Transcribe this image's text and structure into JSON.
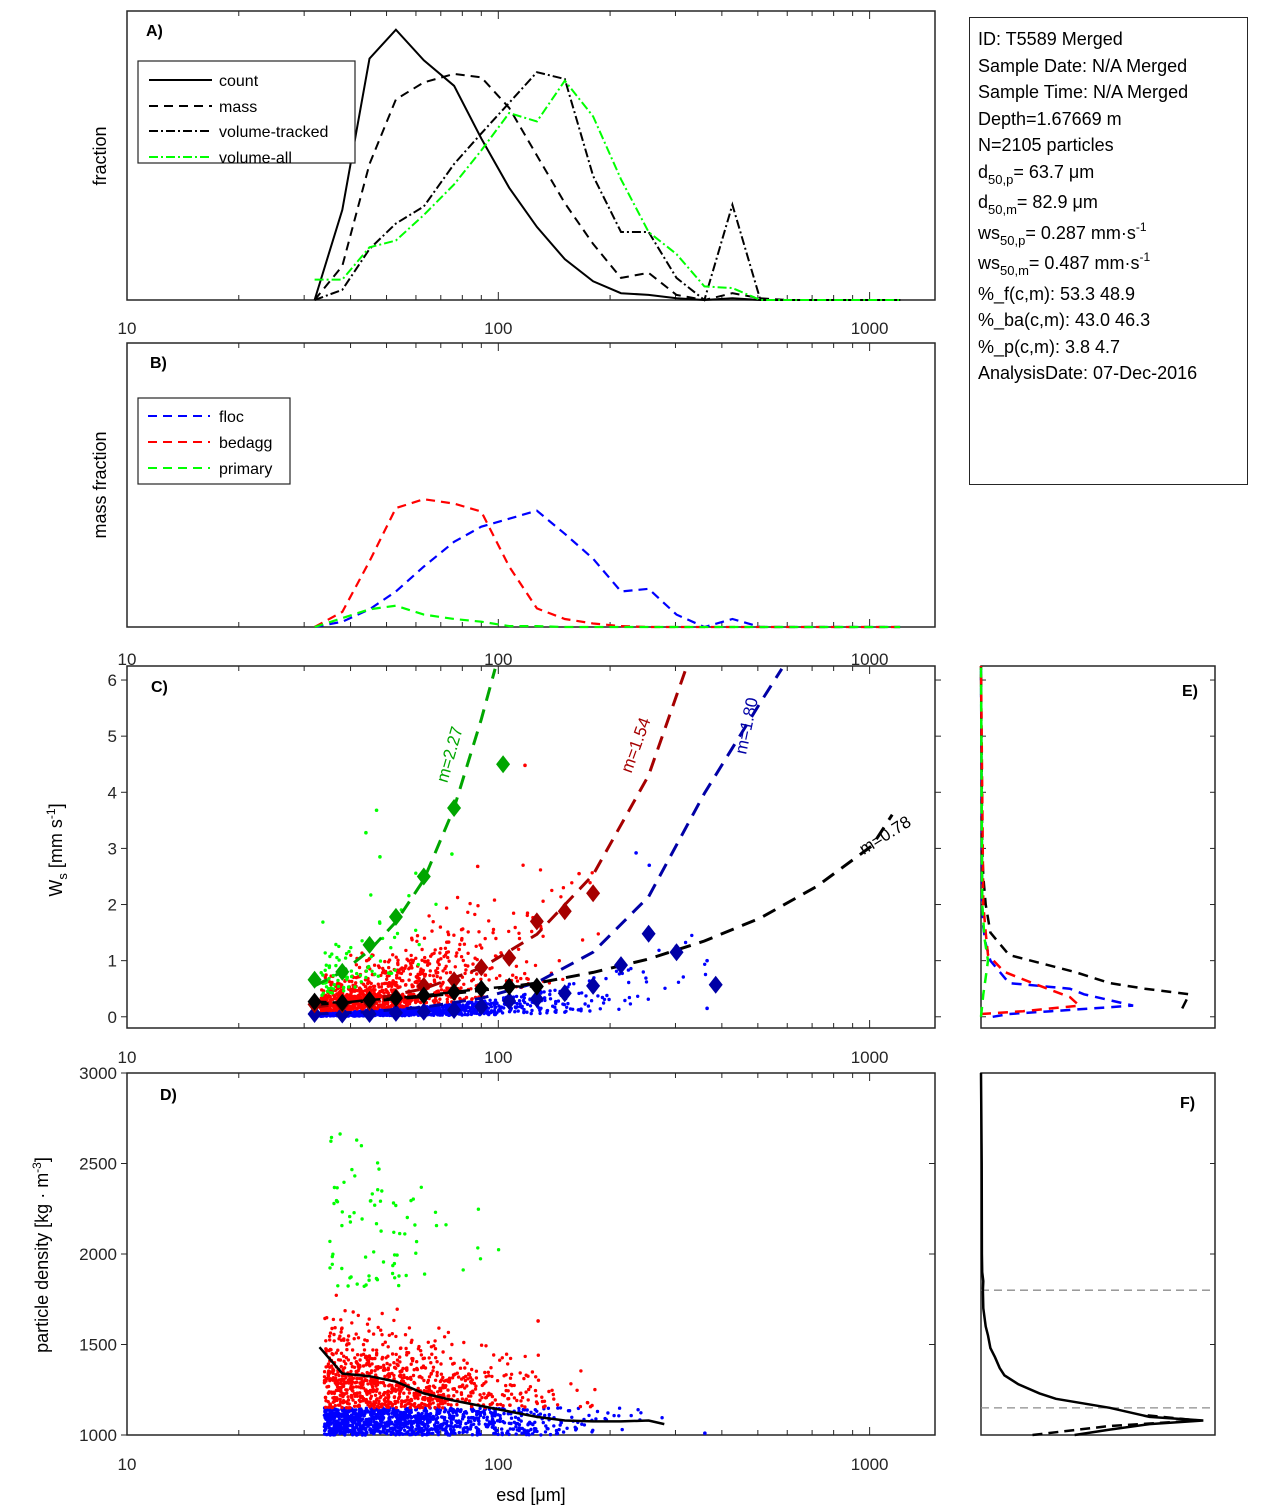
{
  "info_box": {
    "id": "ID: T5589 Merged",
    "sample_date": "Sample Date: N/A Merged",
    "sample_time": "Sample Time: N/A Merged",
    "depth": "Depth=1.67669 m",
    "n": "N=2105 particles",
    "d50p_base": "d",
    "d50p_sub": "50,p",
    "d50p_val": "=  63.7 μm",
    "d50m_base": "d",
    "d50m_sub": "50,m",
    "d50m_val": "=  82.9 μm",
    "ws50p_base": "ws",
    "ws50p_sub": "50,p",
    "ws50p_val": "= 0.287 mm·s",
    "ws50p_sup": "-1",
    "ws50m_base": "ws",
    "ws50m_sub": "50,m",
    "ws50m_val": "= 0.487 mm·s",
    "ws50m_sup": "-1",
    "pf": "%_f(c,m): 53.3 48.9",
    "pba": "%_ba(c,m): 43.0 46.3",
    "pp": "%_p(c,m): 3.8 4.7",
    "analysis_date": "AnalysisDate: 07-Dec-2016"
  },
  "colors": {
    "black": "#000000",
    "green": "#00ff00",
    "blue": "#0000ff",
    "red": "#ff0000",
    "dark_green": "#00a600",
    "dark_red": "#a60000",
    "dark_blue": "#0000a6",
    "gray": "#8c8c8c",
    "axis": "#262626"
  },
  "chart_data": [
    {
      "panel": "A",
      "type": "line",
      "label": "A)",
      "xscale": "log",
      "xlim": [
        10,
        1500
      ],
      "xticks": [
        10,
        100,
        1000
      ],
      "xtick_labels": [
        "10",
        "100",
        "1000"
      ],
      "ylabel": "fraction",
      "ylim": [
        0,
        0.17
      ],
      "yticks_shown": false,
      "legend_position": "top-left",
      "x": [
        32,
        38,
        45,
        53,
        63,
        76,
        90,
        107,
        127,
        151,
        180,
        214,
        254,
        302,
        359,
        427,
        508,
        604,
        719,
        855,
        1016,
        1209
      ],
      "series": [
        {
          "name": "count",
          "style": "solid",
          "color": "#000000",
          "values": [
            0.0,
            0.053,
            0.142,
            0.159,
            0.141,
            0.126,
            0.095,
            0.066,
            0.043,
            0.024,
            0.011,
            0.004,
            0.003,
            0.001,
            0.0,
            0.001,
            0.0,
            0.0,
            0.0,
            0.0,
            0.0,
            0.0
          ]
        },
        {
          "name": "mass",
          "style": "dashed",
          "color": "#000000",
          "values": [
            0.0,
            0.02,
            0.08,
            0.118,
            0.128,
            0.133,
            0.131,
            0.113,
            0.085,
            0.057,
            0.033,
            0.013,
            0.016,
            0.003,
            0.0,
            0.004,
            0.001,
            0.0,
            0.0,
            0.0,
            0.0,
            0.0
          ]
        },
        {
          "name": "volume-tracked",
          "style": "dashdot",
          "color": "#000000",
          "values": [
            0.0,
            0.006,
            0.03,
            0.045,
            0.055,
            0.08,
            0.098,
            0.116,
            0.134,
            0.13,
            0.073,
            0.04,
            0.04,
            0.013,
            0.0,
            0.056,
            0.0,
            0.0,
            0.0,
            0.0,
            0.0,
            0.0
          ]
        },
        {
          "name": "volume-all",
          "style": "dashdot",
          "color": "#00ff00",
          "values": [
            0.012,
            0.012,
            0.031,
            0.035,
            0.05,
            0.068,
            0.088,
            0.11,
            0.105,
            0.129,
            0.108,
            0.071,
            0.04,
            0.027,
            0.008,
            0.007,
            0.0,
            0.0,
            0.0,
            0.0,
            0.0,
            0.0
          ]
        }
      ]
    },
    {
      "panel": "B",
      "type": "line",
      "label": "B)",
      "xscale": "log",
      "xlim": [
        10,
        1500
      ],
      "xticks": [
        10,
        100,
        1000
      ],
      "xtick_labels": [
        "10",
        "100",
        "1000"
      ],
      "ylabel": "mass fraction",
      "ylim": [
        0,
        0.32
      ],
      "yticks_shown": false,
      "legend_position": "top-left",
      "x": [
        32,
        38,
        45,
        53,
        63,
        76,
        90,
        107,
        127,
        151,
        180,
        214,
        254,
        302,
        359,
        427,
        508,
        604,
        719,
        855,
        1016,
        1209
      ],
      "series": [
        {
          "name": "floc",
          "style": "dashed",
          "color": "#0000ff",
          "values": [
            0.0,
            0.006,
            0.02,
            0.04,
            0.068,
            0.096,
            0.113,
            0.122,
            0.131,
            0.105,
            0.077,
            0.04,
            0.043,
            0.014,
            0.0,
            0.009,
            0.0,
            0.0,
            0.0,
            0.0,
            0.0,
            0.0
          ]
        },
        {
          "name": "bedagg",
          "style": "dashed",
          "color": "#ff0000",
          "values": [
            0.0,
            0.017,
            0.074,
            0.134,
            0.144,
            0.139,
            0.13,
            0.068,
            0.021,
            0.009,
            0.004,
            0.001,
            0.0,
            0.0,
            0.0,
            0.0,
            0.0,
            0.0,
            0.0,
            0.0,
            0.0,
            0.0
          ]
        },
        {
          "name": "primary",
          "style": "dashed",
          "color": "#00ff00",
          "values": [
            0.0,
            0.01,
            0.02,
            0.024,
            0.014,
            0.009,
            0.006,
            0.001,
            0.001,
            0.0,
            0.0,
            0.0,
            0.0,
            0.0,
            0.0,
            0.0,
            0.0,
            0.0,
            0.0,
            0.0,
            0.0,
            0.0
          ]
        }
      ]
    },
    {
      "panel": "C",
      "type": "scatter",
      "label": "C)",
      "xscale": "log",
      "xlim": [
        10,
        1500
      ],
      "xticks": [
        10,
        100,
        1000
      ],
      "xtick_labels": [
        "10",
        "100",
        "1000"
      ],
      "ylabel": "W_s [mm s^-1]",
      "ylim": [
        -0.2,
        6.25
      ],
      "yticks": [
        0,
        1,
        2,
        3,
        4,
        5,
        6
      ],
      "ytick_labels": [
        "0",
        "1",
        "2",
        "3",
        "4",
        "5",
        "6"
      ],
      "scatter_groups": [
        {
          "name": "floc",
          "color": "#0000ff",
          "count": 1120,
          "x_range": [
            32,
            400
          ],
          "y_range": [
            0,
            1.0
          ]
        },
        {
          "name": "bedagg",
          "color": "#ff0000",
          "count": 905,
          "x_range": [
            33,
            200
          ],
          "y_range": [
            0.1,
            2.7
          ]
        },
        {
          "name": "primary",
          "color": "#00ff00",
          "count": 80,
          "x_range": [
            33,
            80
          ],
          "y_range": [
            0.4,
            3.7
          ]
        }
      ],
      "outliers": [
        {
          "group": "primary",
          "x": 47,
          "y": 3.68
        },
        {
          "group": "primary",
          "x": 44,
          "y": 3.28
        },
        {
          "group": "primary",
          "x": 48,
          "y": 2.85
        },
        {
          "group": "primary",
          "x": 75,
          "y": 2.9
        },
        {
          "group": "bedagg",
          "x": 118,
          "y": 4.48
        },
        {
          "group": "bedagg",
          "x": 88,
          "y": 2.68
        },
        {
          "group": "bedagg",
          "x": 165,
          "y": 2.55
        },
        {
          "group": "floc",
          "x": 235,
          "y": 2.92
        },
        {
          "group": "floc",
          "x": 255,
          "y": 2.7
        },
        {
          "group": "floc",
          "x": 365,
          "y": 1.0
        },
        {
          "group": "floc",
          "x": 365,
          "y": 0.15
        }
      ],
      "bin_medians": [
        {
          "name": "floc",
          "color": "#0000a6",
          "x": [
            32,
            38,
            45,
            53,
            63,
            76,
            90,
            107,
            127,
            151,
            180,
            214,
            254,
            302,
            385
          ],
          "y": [
            0.05,
            0.04,
            0.05,
            0.07,
            0.09,
            0.12,
            0.18,
            0.28,
            0.32,
            0.42,
            0.55,
            0.92,
            1.48,
            1.15,
            0.57
          ]
        },
        {
          "name": "bedagg",
          "color": "#a60000",
          "x": [
            32,
            38,
            45,
            53,
            63,
            76,
            90,
            107,
            127,
            151,
            180
          ],
          "y": [
            0.22,
            0.22,
            0.26,
            0.35,
            0.55,
            0.65,
            0.88,
            1.05,
            1.7,
            1.88,
            2.2
          ]
        },
        {
          "name": "primary",
          "color": "#00a600",
          "x": [
            32,
            38,
            45,
            53,
            63,
            76,
            103
          ],
          "y": [
            0.66,
            0.8,
            1.28,
            1.78,
            2.5,
            3.72,
            4.5
          ]
        },
        {
          "name": "all",
          "color": "#000000",
          "x": [
            32,
            38,
            45,
            53,
            63,
            76,
            90,
            107,
            127
          ],
          "y": [
            0.27,
            0.25,
            0.3,
            0.33,
            0.38,
            0.44,
            0.5,
            0.54,
            0.54
          ]
        }
      ],
      "fit_curves": [
        {
          "name": "primary-fit",
          "label": "m=2.27",
          "m": 2.27,
          "color": "#00a600",
          "x": [
            32,
            38,
            45,
            53,
            63,
            76,
            90,
            98
          ],
          "y": [
            0.55,
            0.8,
            1.18,
            1.69,
            2.44,
            3.72,
            5.3,
            6.2
          ]
        },
        {
          "name": "bedagg-fit",
          "label": "m=1.54",
          "m": 1.54,
          "color": "#a60000",
          "x": [
            32,
            45,
            63,
            90,
            127,
            180,
            254,
            320
          ],
          "y": [
            0.17,
            0.3,
            0.5,
            0.87,
            1.47,
            2.53,
            4.3,
            6.2
          ]
        },
        {
          "name": "floc-fit",
          "label": "m=1.80",
          "m": 1.8,
          "color": "#0000a6",
          "x": [
            32,
            45,
            63,
            90,
            127,
            180,
            254,
            359,
            508,
            580
          ],
          "y": [
            0.05,
            0.09,
            0.17,
            0.33,
            0.61,
            1.15,
            2.14,
            3.98,
            5.6,
            6.2
          ]
        },
        {
          "name": "all-fit",
          "label": "m=0.78",
          "m": 0.78,
          "color": "#000000",
          "x": [
            32,
            45,
            63,
            90,
            127,
            180,
            254,
            359,
            508,
            719,
            1016,
            1150
          ],
          "y": [
            0.22,
            0.28,
            0.36,
            0.47,
            0.6,
            0.79,
            1.03,
            1.35,
            1.76,
            2.32,
            3.05,
            3.6
          ]
        }
      ]
    },
    {
      "panel": "D",
      "type": "scatter",
      "label": "D)",
      "xscale": "log",
      "xlim": [
        10,
        1500
      ],
      "xticks": [
        10,
        100,
        1000
      ],
      "xtick_labels": [
        "10",
        "100",
        "1000"
      ],
      "xlabel": "esd [μm]",
      "ylabel": "particle density [kg · m^-3]",
      "ylim": [
        1000,
        3000
      ],
      "yticks": [
        1000,
        1500,
        2000,
        2500,
        3000
      ],
      "ytick_labels": [
        "1000",
        "1500",
        "2000",
        "2500",
        "3000"
      ],
      "scatter_groups": [
        {
          "name": "floc",
          "color": "#0000ff",
          "count": 1120,
          "x_range": [
            34,
            280
          ],
          "y_range": [
            1000,
            1150
          ]
        },
        {
          "name": "bedagg",
          "color": "#ff0000",
          "count": 905,
          "x_range": [
            34,
            200
          ],
          "y_range": [
            1150,
            1800
          ]
        },
        {
          "name": "primary",
          "color": "#00ff00",
          "count": 80,
          "x_range": [
            35,
            101
          ],
          "y_range": [
            1800,
            2720
          ]
        }
      ],
      "outliers": [
        {
          "group": "floc",
          "x": 360,
          "y": 1010
        },
        {
          "group": "bedagg",
          "x": 128,
          "y": 1630
        }
      ],
      "mean_curve": {
        "name": "mean-density",
        "color": "#000000",
        "x": [
          33,
          38,
          45,
          53,
          63,
          76,
          90,
          107,
          127,
          151,
          180,
          214,
          254,
          280
        ],
        "y": [
          1485,
          1340,
          1325,
          1295,
          1230,
          1190,
          1160,
          1130,
          1100,
          1080,
          1075,
          1075,
          1080,
          1060
        ]
      }
    },
    {
      "panel": "E",
      "type": "line",
      "label": "E)",
      "ylim": [
        -0.2,
        6.25
      ],
      "yticks_shown": true,
      "yticks": [
        0,
        1,
        2,
        3,
        4,
        5,
        6
      ],
      "orientation": "horizontal-distribution",
      "xlim": [
        0,
        1.0
      ],
      "series": [
        {
          "name": "all",
          "color": "#000000",
          "style": "dashed",
          "y": [
            0.15,
            0.4,
            0.5,
            0.6,
            0.8,
            1.1,
            1.5,
            2.0,
            2.5,
            3.0,
            6.25
          ],
          "values": [
            0.86,
            0.89,
            0.7,
            0.55,
            0.4,
            0.12,
            0.04,
            0.02,
            0.01,
            0.005,
            0
          ]
        },
        {
          "name": "floc",
          "color": "#0000ff",
          "style": "dashed",
          "y": [
            0.0,
            0.05,
            0.1,
            0.2,
            0.4,
            0.5,
            0.6,
            1.0,
            1.3,
            1.6,
            2.0,
            6.25
          ],
          "values": [
            0.05,
            0.12,
            0.3,
            0.65,
            0.44,
            0.38,
            0.12,
            0.04,
            0.02,
            0.01,
            0.005,
            0
          ]
        },
        {
          "name": "bedagg",
          "color": "#ff0000",
          "style": "dashed",
          "y": [
            0.05,
            0.1,
            0.2,
            0.35,
            0.6,
            0.8,
            1.1,
            1.5,
            2.0,
            6.25
          ],
          "values": [
            0.0,
            0.18,
            0.42,
            0.38,
            0.22,
            0.1,
            0.03,
            0.02,
            0.01,
            0
          ]
        },
        {
          "name": "primary",
          "color": "#00ff00",
          "style": "dashed",
          "y": [
            0.0,
            0.4,
            0.7,
            1.0,
            1.4,
            2.0,
            6.25
          ],
          "values": [
            0.0,
            0.01,
            0.02,
            0.03,
            0.015,
            0.005,
            0.0
          ]
        }
      ]
    },
    {
      "panel": "F",
      "type": "line",
      "label": "F)",
      "ylim": [
        1000,
        3000
      ],
      "yticks_shown": true,
      "yticks": [
        1000,
        1500,
        2000,
        2500,
        3000
      ],
      "xlim": [
        0,
        1.0
      ],
      "reference_lines": [
        1150,
        1800
      ],
      "series": [
        {
          "name": "density-distribution",
          "color": "#000000",
          "style": "solid",
          "y": [
            1000,
            1030,
            1060,
            1080,
            1100,
            1150,
            1200,
            1230,
            1280,
            1330,
            1370,
            1430,
            1480,
            1550,
            1600,
            1700,
            1800,
            1850,
            1900,
            2000,
            2500,
            3000
          ],
          "values": [
            0.4,
            0.55,
            0.72,
            0.95,
            0.72,
            0.55,
            0.32,
            0.25,
            0.16,
            0.1,
            0.08,
            0.06,
            0.04,
            0.03,
            0.02,
            0.01,
            0.008,
            0.01,
            0.005,
            0.004,
            0.003,
            0.0
          ]
        },
        {
          "name": "density-distribution-alt",
          "color": "#000000",
          "style": "dashed",
          "y": [
            1000,
            1020,
            1050,
            1080,
            1110
          ],
          "values": [
            0.22,
            0.35,
            0.55,
            0.93,
            0.7
          ]
        }
      ]
    }
  ]
}
